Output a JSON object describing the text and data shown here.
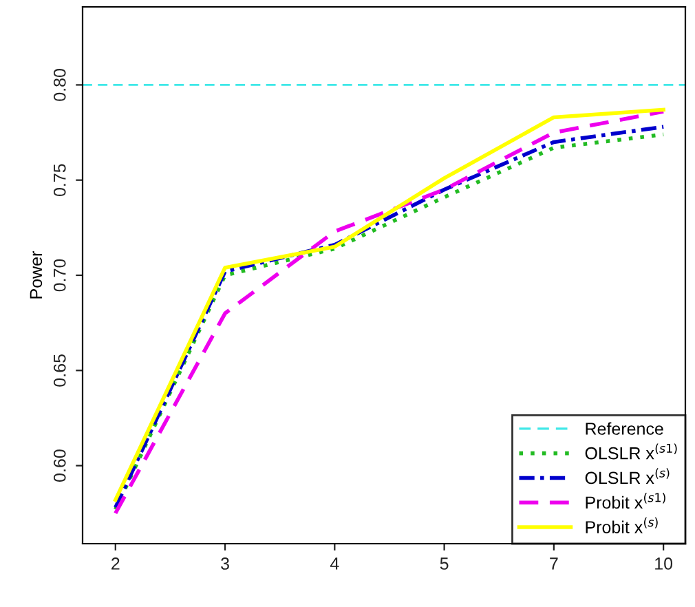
{
  "chart_data": {
    "type": "line",
    "ylabel": "Power",
    "categories": [
      "2",
      "3",
      "4",
      "5",
      "7",
      "10"
    ],
    "ylim": [
      0.559,
      0.841
    ],
    "yticks": [
      {
        "value": 0.6,
        "label": "0.60"
      },
      {
        "value": 0.65,
        "label": "0.65"
      },
      {
        "value": 0.7,
        "label": "0.70"
      },
      {
        "value": 0.75,
        "label": "0.75"
      },
      {
        "value": 0.8,
        "label": "0.80"
      }
    ],
    "ref_lines": [
      {
        "axis": "y",
        "value": 0.8,
        "label": "Reference",
        "color": "#40e8e8",
        "line_style": "dashed"
      }
    ],
    "series": [
      {
        "name": "OLSLR x$^{(s1)}$",
        "color": "#22bb22",
        "line_style": "dotted",
        "values": [
          0.577,
          0.7,
          0.714,
          0.741,
          0.767,
          0.774
        ]
      },
      {
        "name": "OLSLR x$^{(s)}$",
        "color": "#0000cc",
        "line_style": "dashdot",
        "values": [
          0.578,
          0.702,
          0.716,
          0.745,
          0.77,
          0.778
        ]
      },
      {
        "name": "Probit x$^{(s1)}$",
        "color": "#ee00ee",
        "line_style": "dashed",
        "values": [
          0.575,
          0.68,
          0.723,
          0.745,
          0.775,
          0.786
        ]
      },
      {
        "name": "Probit x$^{(s)}$",
        "color": "#ffff00",
        "line_style": "solid",
        "values": [
          0.582,
          0.704,
          0.715,
          0.751,
          0.783,
          0.787
        ]
      }
    ],
    "grid": false,
    "legend": "bottom right",
    "marker": "none"
  }
}
